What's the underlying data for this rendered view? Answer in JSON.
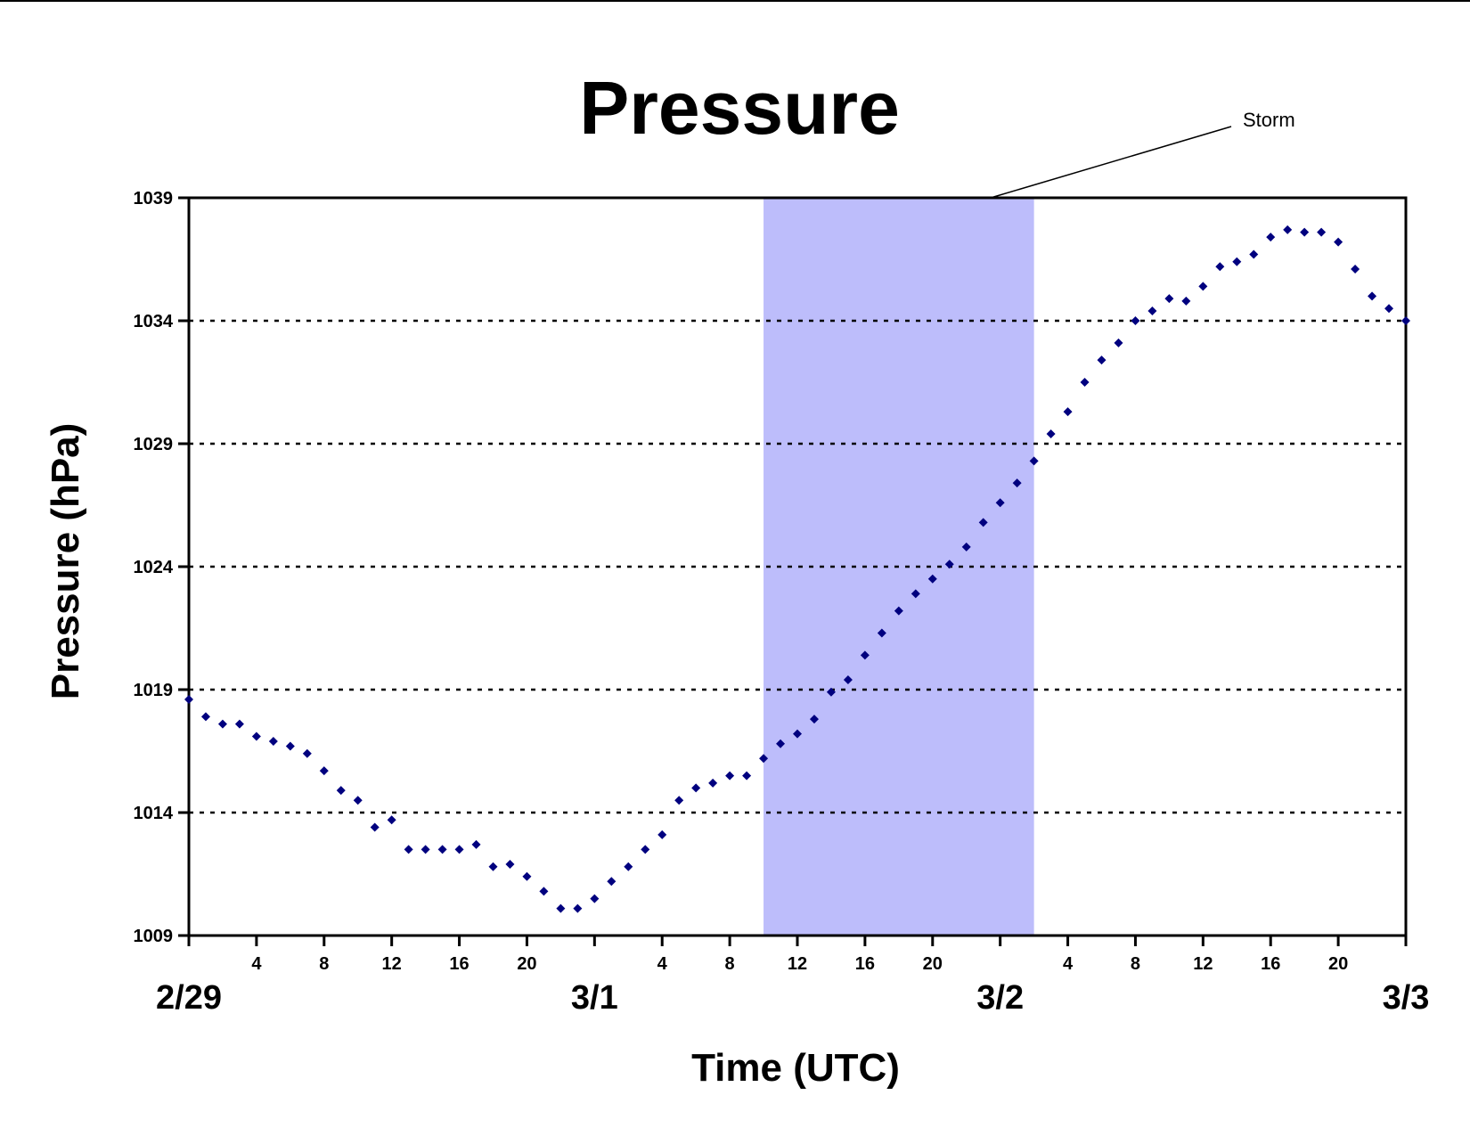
{
  "chart_data": {
    "type": "scatter",
    "title": "Pressure",
    "xlabel": "Time (UTC)",
    "ylabel": "Pressure (hPa)",
    "ylim": [
      1009,
      1039
    ],
    "yticks": [
      1009,
      1014,
      1019,
      1024,
      1029,
      1034,
      1039
    ],
    "ytick_labels": [
      "1009",
      "1014",
      "1019",
      "1024",
      "1029",
      "1034",
      "1039"
    ],
    "xlim_hours": [
      0,
      72
    ],
    "hour_ticks": [
      {
        "hour": 4,
        "label": "4"
      },
      {
        "hour": 8,
        "label": "8"
      },
      {
        "hour": 12,
        "label": "12"
      },
      {
        "hour": 16,
        "label": "16"
      },
      {
        "hour": 20,
        "label": "20"
      },
      {
        "hour": 28,
        "label": "4"
      },
      {
        "hour": 32,
        "label": "8"
      },
      {
        "hour": 36,
        "label": "12"
      },
      {
        "hour": 40,
        "label": "16"
      },
      {
        "hour": 44,
        "label": "20"
      },
      {
        "hour": 52,
        "label": "4"
      },
      {
        "hour": 56,
        "label": "8"
      },
      {
        "hour": 60,
        "label": "12"
      },
      {
        "hour": 64,
        "label": "16"
      },
      {
        "hour": 68,
        "label": "20"
      }
    ],
    "date_ticks": [
      {
        "hour": 0,
        "label": "2/29"
      },
      {
        "hour": 24,
        "label": "3/1"
      },
      {
        "hour": 48,
        "label": "3/2"
      },
      {
        "hour": 72,
        "label": "3/3"
      }
    ],
    "grid": "horizontal-dotted",
    "shaded_region": {
      "x_start_hour": 34,
      "x_end_hour": 50,
      "label": "Storm",
      "color": "#bdbdfb"
    },
    "colors": {
      "marker": "#00007f",
      "grid": "#000000",
      "axes": "#000000"
    },
    "series": [
      {
        "x": [
          0,
          1,
          2,
          3,
          4,
          5,
          6,
          7,
          8,
          9,
          10,
          11,
          12,
          13,
          14,
          15,
          16,
          17,
          18,
          19,
          20,
          21,
          22,
          23,
          24,
          25,
          26,
          27,
          28,
          29,
          30,
          31,
          32,
          33,
          34,
          35,
          36,
          37,
          38,
          39,
          40,
          41,
          42,
          43,
          44,
          45,
          46,
          47,
          48,
          49,
          50,
          51,
          52,
          53,
          54,
          55,
          56,
          57,
          58,
          59,
          60,
          61,
          62,
          63,
          64,
          65,
          66,
          67,
          68,
          69,
          70,
          71,
          72
        ],
        "y": [
          1018.6,
          1017.9,
          1017.6,
          1017.6,
          1017.1,
          1016.9,
          1016.7,
          1016.4,
          1015.7,
          1014.9,
          1014.5,
          1013.4,
          1013.7,
          1012.5,
          1012.5,
          1012.5,
          1012.5,
          1012.7,
          1011.8,
          1011.9,
          1011.4,
          1010.8,
          1010.1,
          1010.1,
          1010.5,
          1011.2,
          1011.8,
          1012.5,
          1013.1,
          1014.5,
          1015.0,
          1015.2,
          1015.5,
          1015.5,
          1016.2,
          1016.8,
          1017.2,
          1017.8,
          1018.9,
          1019.4,
          1020.4,
          1021.3,
          1022.2,
          1022.9,
          1023.5,
          1024.1,
          1024.8,
          1025.8,
          1026.6,
          1027.4,
          1028.3,
          1029.4,
          1030.3,
          1031.5,
          1032.4,
          1033.1,
          1034.0,
          1034.4,
          1034.9,
          1034.8,
          1035.4,
          1036.2,
          1036.4,
          1036.7,
          1037.4,
          1037.7,
          1037.6,
          1037.6,
          1037.2,
          1036.1,
          1035.0,
          1034.5,
          1034.0
        ]
      }
    ]
  }
}
